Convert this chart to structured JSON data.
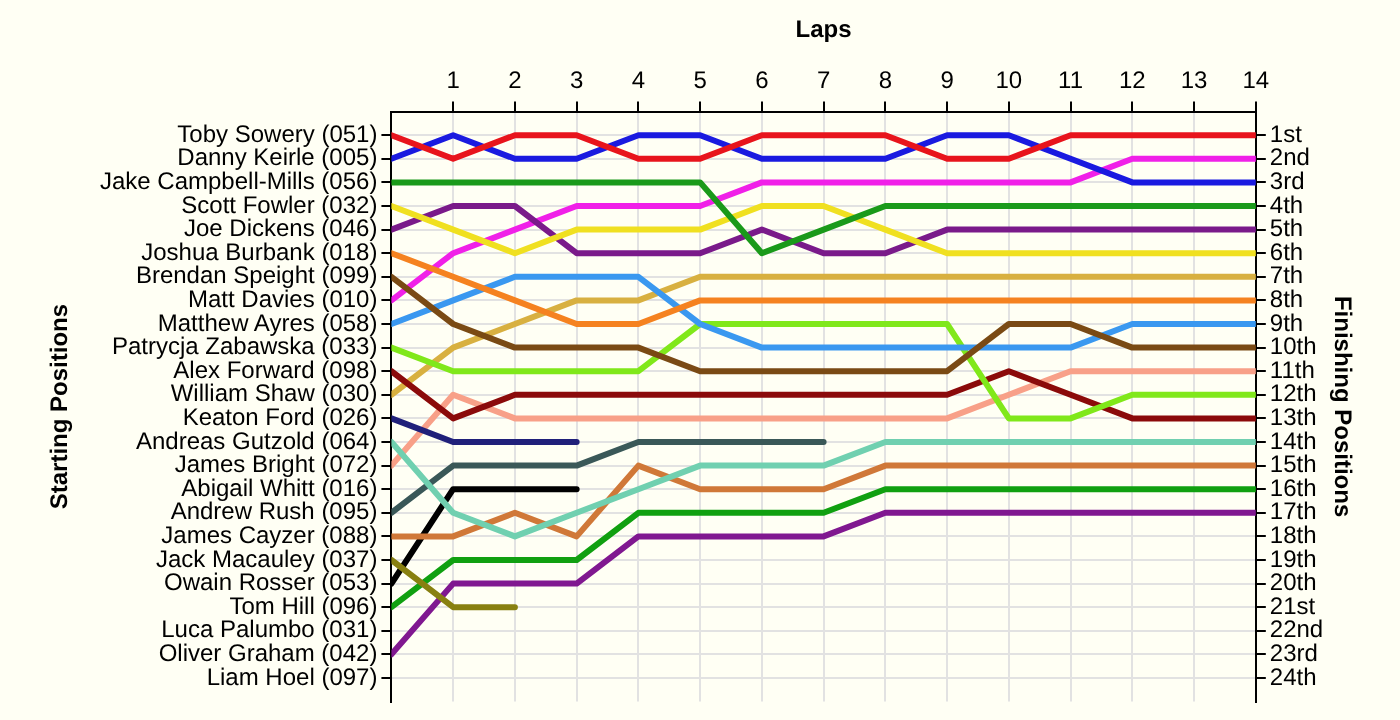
{
  "chart_data": {
    "type": "line",
    "xlabel": "Laps",
    "ylabel": "Finishing Positions",
    "annotations": [
      "Starting Positions"
    ],
    "x": [
      0,
      1,
      2,
      3,
      4,
      5,
      6,
      7,
      8,
      9,
      10,
      11,
      12,
      13,
      14
    ],
    "xlim": [
      0,
      14
    ],
    "xticks": [
      1,
      2,
      3,
      4,
      5,
      6,
      7,
      8,
      9,
      10,
      11,
      12,
      13,
      14
    ],
    "y_categories": [
      "Toby Sowery (051)",
      "Danny Keirle (005)",
      "Jake Campbell-Mills (056)",
      "Scott Fowler (032)",
      "Joe Dickens (046)",
      "Joshua Burbank (018)",
      "Brendan Speight (099)",
      "Matt Davies (010)",
      "Matthew Ayres (058)",
      "Patrycja Zabawska (033)",
      "Alex Forward (098)",
      "William Shaw (030)",
      "Keaton Ford (026)",
      "Andreas Gutzold (064)",
      "James Bright (072)",
      "Abigail Whitt (016)",
      "Andrew Rush (095)",
      "James Cayzer (088)",
      "Jack Macauley (037)",
      "Owain Rosser (053)",
      "Tom Hill (096)",
      "Luca Palumbo (031)",
      "Oliver Graham (042)",
      "Liam Hoel (097)"
    ],
    "ylim": [
      25,
      0
    ],
    "yticks": [
      {
        "value": 1,
        "label": "1st"
      },
      {
        "value": 2,
        "label": "2nd"
      },
      {
        "value": 3,
        "label": "3rd"
      },
      {
        "value": 4,
        "label": "4th"
      },
      {
        "value": 5,
        "label": "5th"
      },
      {
        "value": 6,
        "label": "6th"
      },
      {
        "value": 7,
        "label": "7th"
      },
      {
        "value": 8,
        "label": "8th"
      },
      {
        "value": 9,
        "label": "9th"
      },
      {
        "value": 10,
        "label": "10th"
      },
      {
        "value": 11,
        "label": "11th"
      },
      {
        "value": 12,
        "label": "12th"
      },
      {
        "value": 13,
        "label": "13th"
      },
      {
        "value": 14,
        "label": "14th"
      },
      {
        "value": 15,
        "label": "15th"
      },
      {
        "value": 16,
        "label": "16th"
      },
      {
        "value": 17,
        "label": "17th"
      },
      {
        "value": 18,
        "label": "18th"
      },
      {
        "value": 19,
        "label": "19th"
      },
      {
        "value": 20,
        "label": "20th"
      },
      {
        "value": 21,
        "label": "21st"
      },
      {
        "value": 22,
        "label": "22nd"
      },
      {
        "value": 23,
        "label": "23rd"
      },
      {
        "value": 24,
        "label": "24th"
      }
    ],
    "grid": true,
    "legend": false,
    "marker": "none",
    "line_style": "solid",
    "series": [
      {
        "color": "#e8141c",
        "values": [
          1,
          2,
          1,
          1,
          2,
          2,
          1,
          1,
          1,
          2,
          2,
          1,
          1,
          1,
          1
        ]
      },
      {
        "color": "#1a1ae0",
        "values": [
          2,
          1,
          2,
          2,
          1,
          1,
          2,
          2,
          2,
          1,
          1,
          2,
          3,
          3,
          3
        ]
      },
      {
        "color": "#1a9a1a",
        "values": [
          3,
          3,
          3,
          3,
          3,
          3,
          6,
          5,
          4,
          4,
          4,
          4,
          4,
          4,
          4
        ]
      },
      {
        "color": "#f0e020",
        "values": [
          4,
          5,
          6,
          5,
          5,
          5,
          4,
          4,
          5,
          6,
          6,
          6,
          6,
          6,
          6
        ]
      },
      {
        "color": "#7a1a8a",
        "values": [
          5,
          4,
          4,
          6,
          6,
          6,
          5,
          6,
          6,
          5,
          5,
          5,
          5,
          5,
          5
        ]
      },
      {
        "color": "#f58220",
        "values": [
          6,
          7,
          8,
          9,
          9,
          8,
          8,
          8,
          8,
          8,
          8,
          8,
          8,
          8,
          8
        ]
      },
      {
        "color": "#7a4a14",
        "values": [
          7,
          9,
          10,
          10,
          10,
          11,
          11,
          11,
          11,
          11,
          9,
          9,
          10,
          10,
          10
        ]
      },
      {
        "color": "#f020e8",
        "values": [
          8,
          6,
          5,
          4,
          4,
          4,
          3,
          3,
          3,
          3,
          3,
          3,
          2,
          2,
          2
        ]
      },
      {
        "color": "#3a98f0",
        "values": [
          9,
          8,
          7,
          7,
          7,
          9,
          10,
          10,
          10,
          10,
          10,
          10,
          9,
          9,
          9
        ]
      },
      {
        "color": "#80e81a",
        "values": [
          10,
          11,
          11,
          11,
          11,
          9,
          9,
          9,
          9,
          9,
          13,
          13,
          12,
          12,
          12
        ]
      },
      {
        "color": "#8b0a0a",
        "values": [
          11,
          13,
          12,
          12,
          12,
          12,
          12,
          12,
          12,
          12,
          11,
          12,
          13,
          13,
          13
        ]
      },
      {
        "color": "#d8b040",
        "values": [
          12,
          10,
          9,
          8,
          8,
          7,
          7,
          7,
          7,
          7,
          7,
          7,
          7,
          7,
          7
        ]
      },
      {
        "color": "#20207a",
        "values": [
          13,
          14,
          14,
          14,
          null,
          null,
          null,
          null,
          null,
          null,
          null,
          null,
          null,
          null,
          null
        ]
      },
      {
        "color": "#70d0b0",
        "values": [
          14,
          17,
          18,
          17,
          16,
          15,
          15,
          15,
          14,
          14,
          14,
          14,
          14,
          14,
          14
        ]
      },
      {
        "color": "#f8a088",
        "values": [
          15,
          12,
          13,
          13,
          13,
          13,
          13,
          13,
          13,
          13,
          12,
          11,
          11,
          11,
          11
        ]
      },
      {
        "color": "#3a5858",
        "values": [
          17,
          15,
          15,
          15,
          14,
          14,
          14,
          14,
          null,
          null,
          null,
          null,
          null,
          null,
          null
        ]
      },
      {
        "color": "#d07838",
        "values": [
          18,
          18,
          17,
          18,
          15,
          16,
          16,
          16,
          15,
          15,
          15,
          15,
          15,
          15,
          15
        ]
      },
      {
        "color": "#888010",
        "values": [
          19,
          21,
          21,
          null,
          null,
          null,
          null,
          null,
          null,
          null,
          null,
          null,
          null,
          null,
          null
        ]
      },
      {
        "color": "#000000",
        "values": [
          20,
          16,
          16,
          16,
          null,
          null,
          null,
          null,
          null,
          null,
          null,
          null,
          null,
          null,
          null
        ]
      },
      {
        "color": "#10a010",
        "values": [
          21,
          19,
          19,
          19,
          17,
          17,
          17,
          17,
          16,
          16,
          16,
          16,
          16,
          16,
          16
        ]
      },
      {
        "color": "#801890",
        "values": [
          23,
          20,
          20,
          20,
          18,
          18,
          18,
          18,
          17,
          17,
          17,
          17,
          17,
          17,
          17
        ]
      }
    ]
  }
}
